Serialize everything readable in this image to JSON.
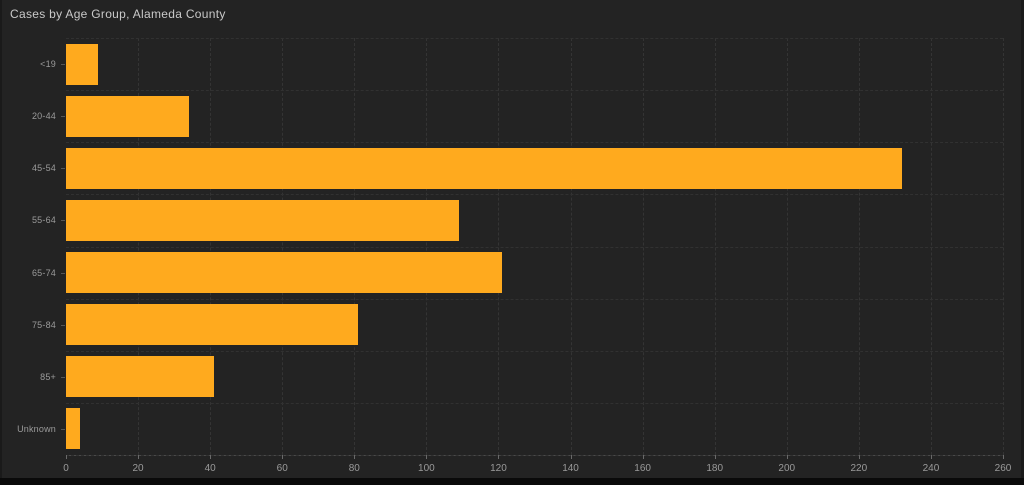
{
  "chart_data": {
    "type": "bar",
    "orientation": "horizontal",
    "title": "Cases by Age Group, Alameda County",
    "categories": [
      "<19",
      "20-44",
      "45-54",
      "55-64",
      "65-74",
      "75-84",
      "85+",
      "Unknown"
    ],
    "values": [
      9,
      34,
      232,
      109,
      121,
      81,
      41,
      4
    ],
    "xlabel": "",
    "ylabel": "",
    "xlim": [
      0,
      260
    ],
    "x_ticks": [
      0,
      20,
      40,
      60,
      80,
      100,
      120,
      140,
      160,
      180,
      200,
      220,
      240,
      260
    ],
    "grid": true,
    "legend": "none",
    "bar_color": "#FFAA1E",
    "background_color": "#232323",
    "title_color": "#C9C9C9",
    "axis_text_color": "#9A9A9A",
    "gridline_color": "#343434",
    "axis_line_color": "#4A4A4A"
  }
}
